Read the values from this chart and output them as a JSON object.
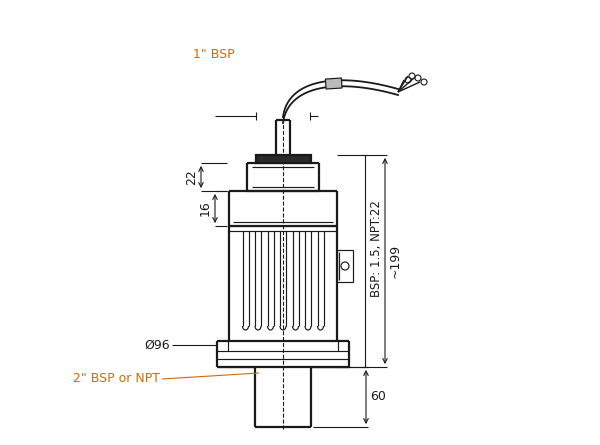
{
  "bg_color": "#ffffff",
  "line_color": "#1a1a1a",
  "dim_color": "#1a1a1a",
  "orange_text": "#d46b00",
  "figsize": [
    6.0,
    4.45
  ],
  "dpi": 100,
  "annotations": {
    "bsp_top": "1\" BSP",
    "dim_22": "22",
    "dim_16": "16",
    "dim_96": "Ø96",
    "bsp_bottom": "2\" BSP or NPT",
    "dim_right": "BSP: 1.5, NPT:22",
    "dim_199": "~199",
    "dim_60": "60"
  }
}
